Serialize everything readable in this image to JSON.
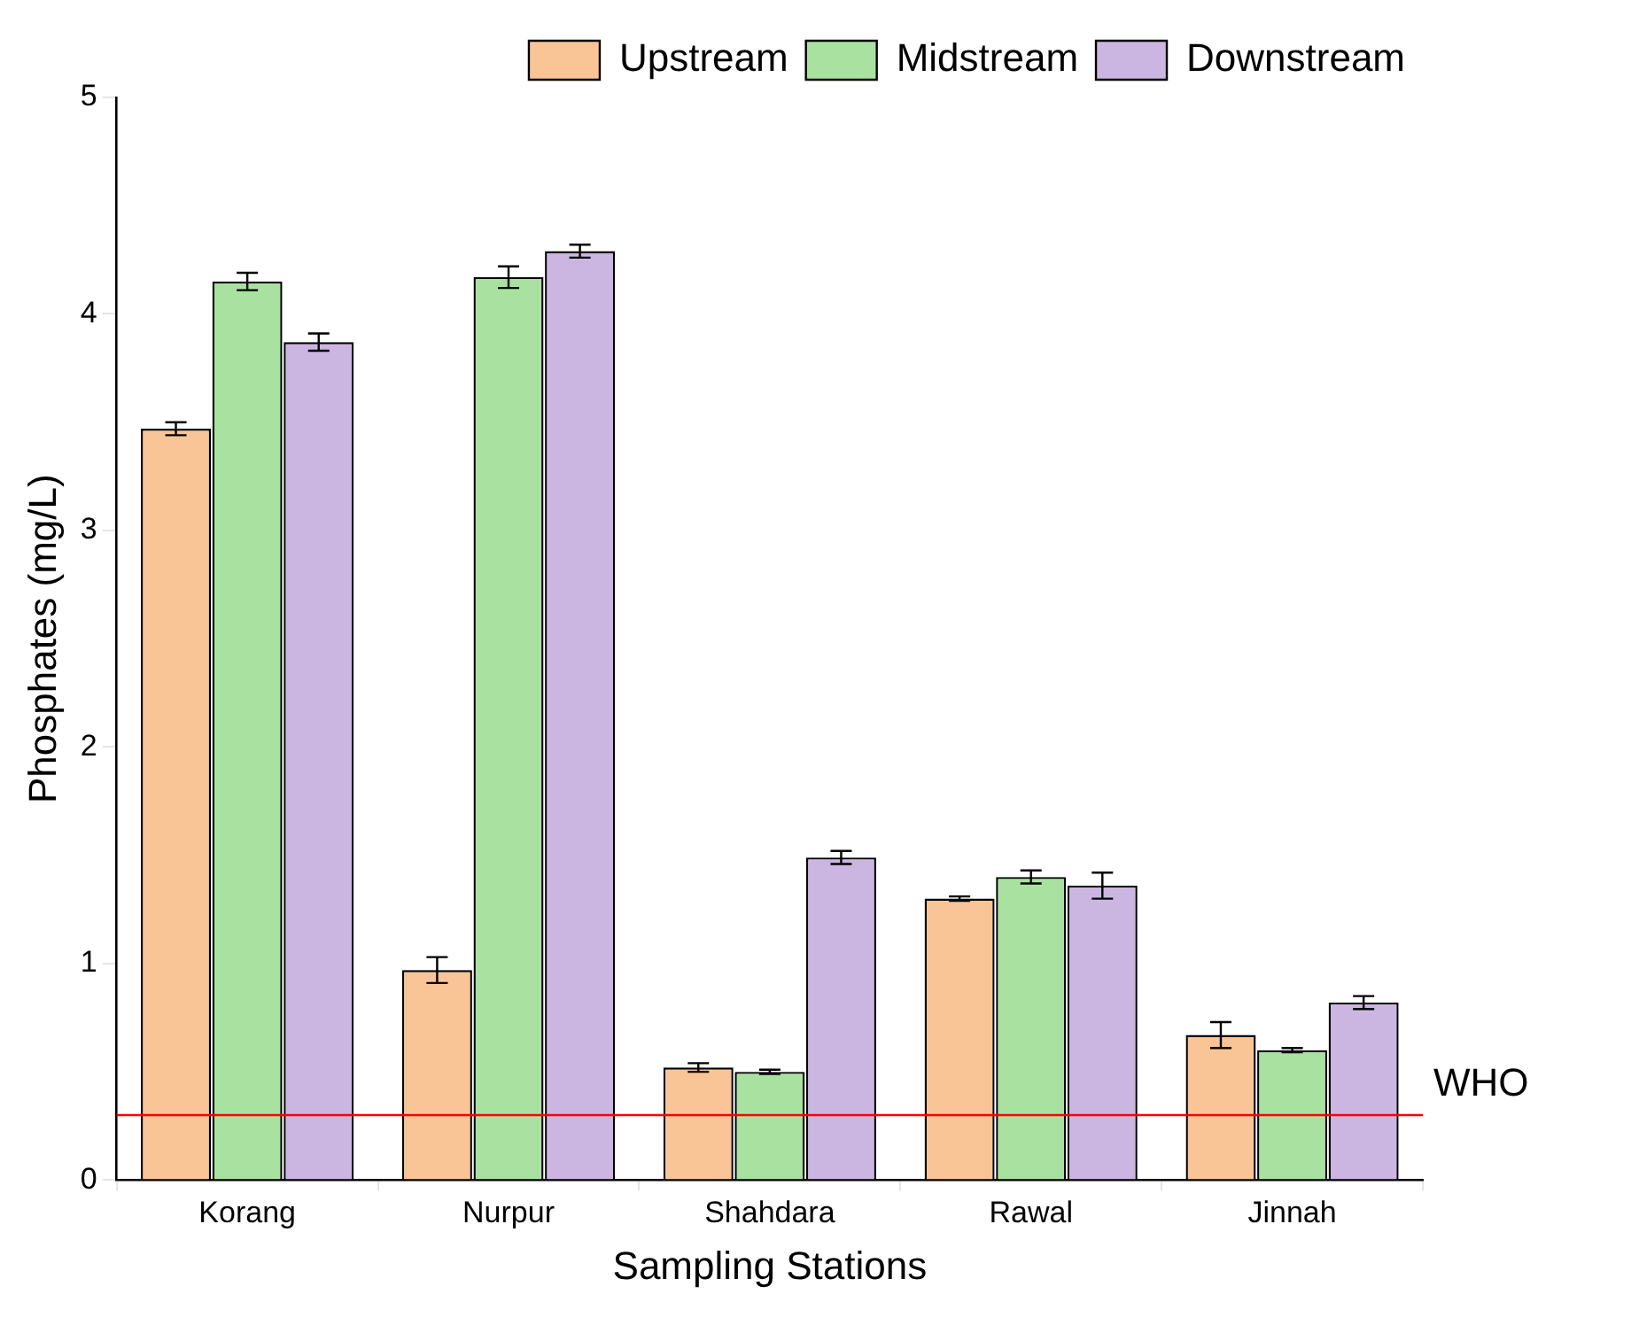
{
  "chart_data": {
    "type": "bar",
    "xlabel": "Sampling Stations",
    "ylabel": "Phosphates (mg/L)",
    "categories": [
      "Korang",
      "Nurpur",
      "Shahdara",
      "Rawal",
      "Jinnah"
    ],
    "series": [
      {
        "name": "Upstream",
        "color": "#f9c596",
        "values": [
          3.47,
          0.97,
          0.52,
          1.3,
          0.67
        ],
        "errors": [
          0.03,
          0.06,
          0.02,
          0.01,
          0.06
        ]
      },
      {
        "name": "Midstream",
        "color": "#a9e2a0",
        "values": [
          4.15,
          4.17,
          0.5,
          1.4,
          0.6
        ],
        "errors": [
          0.04,
          0.05,
          0.01,
          0.03,
          0.01
        ]
      },
      {
        "name": "Downstream",
        "color": "#cbb6e2",
        "values": [
          3.87,
          4.29,
          1.49,
          1.36,
          0.82
        ],
        "errors": [
          0.04,
          0.03,
          0.03,
          0.06,
          0.03
        ]
      }
    ],
    "ylim": [
      0,
      5
    ],
    "yticks": [
      0,
      1,
      2,
      3,
      4,
      5
    ],
    "grid": false,
    "legend": "top right",
    "ref_lines": [
      {
        "axis": "y",
        "value": 0.3,
        "label": "WHO",
        "color": "#ff0000",
        "line_style": "solid"
      }
    ]
  }
}
